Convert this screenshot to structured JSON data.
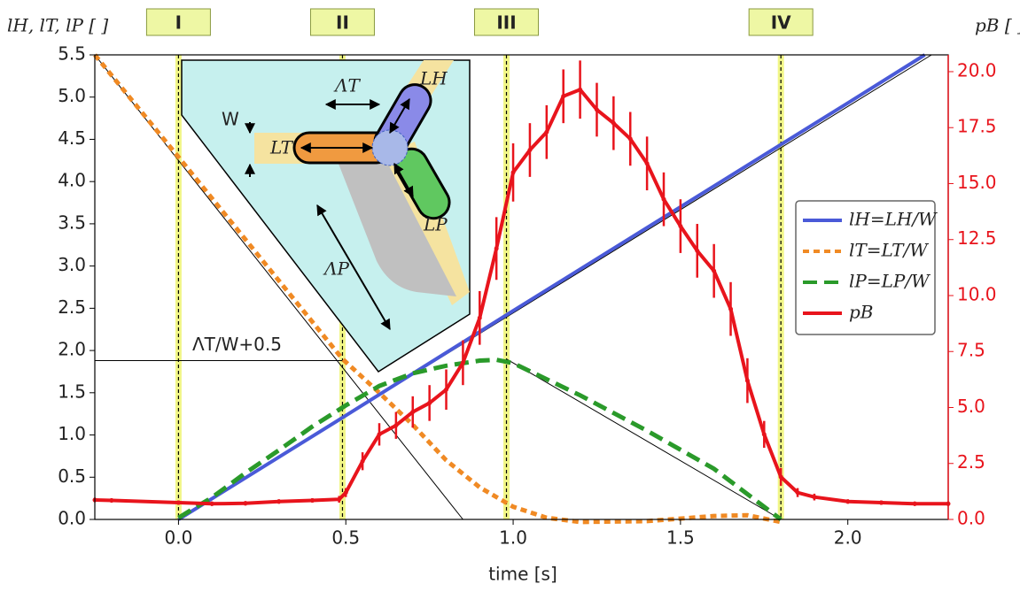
{
  "chart_data": {
    "type": "line",
    "x_label": "time [s]",
    "y_label": "lH, lT, lP [ ]",
    "y2_label": "pB [ ]",
    "xlim": [
      -0.25,
      2.3
    ],
    "ylim": [
      0,
      5.5
    ],
    "y2lim": [
      0,
      20.75
    ],
    "xticks": [
      {
        "value": 0,
        "label": "0.0"
      },
      0.5,
      {
        "value": 1,
        "label": "1.0"
      },
      1.5,
      {
        "value": 2,
        "label": "2.0"
      }
    ],
    "yticks": [
      {
        "value": 0,
        "label": "0.0"
      },
      0.5,
      {
        "value": 1,
        "label": "1.0"
      },
      1.5,
      {
        "value": 2,
        "label": "2.0"
      },
      2.5,
      {
        "value": 3,
        "label": "3.0"
      },
      3.5,
      {
        "value": 4,
        "label": "4.0"
      },
      4.5,
      {
        "value": 5,
        "label": "5.0"
      },
      5.5
    ],
    "y2ticks": [
      {
        "value": 0,
        "label": "0.0"
      },
      2.5,
      {
        "value": 5,
        "label": "5.0"
      },
      7.5,
      {
        "value": 10,
        "label": "10.0"
      },
      12.5,
      {
        "value": 15,
        "label": "15.0"
      },
      17.5,
      {
        "value": 20,
        "label": "20.0"
      }
    ],
    "series": [
      {
        "name": "lH=LH/W",
        "color": "#4a5ad8",
        "style": "solid",
        "x": [
          0,
          0.5,
          1.0,
          1.5,
          2.0,
          2.23
        ],
        "values": [
          0,
          1.23,
          2.47,
          3.7,
          4.93,
          5.5
        ]
      },
      {
        "name": "lT=LT/W",
        "color": "#f08a24",
        "style": "dotted",
        "x": [
          -0.25,
          0,
          0.25,
          0.49,
          0.6,
          0.7,
          0.8,
          0.9,
          1.0,
          1.1,
          1.2,
          1.4,
          1.6,
          1.7,
          1.8
        ],
        "values": [
          5.5,
          4.29,
          3.07,
          1.9,
          1.5,
          1.12,
          0.7,
          0.38,
          0.15,
          0.02,
          -0.03,
          -0.02,
          0.04,
          0.05,
          -0.03
        ]
      },
      {
        "name": "lP=LP/W",
        "color": "#2a9a2a",
        "style": "dashed",
        "x": [
          0,
          0.1,
          0.2,
          0.3,
          0.4,
          0.5,
          0.6,
          0.7,
          0.8,
          0.9,
          0.95,
          1.0,
          1.2,
          1.4,
          1.6,
          1.8
        ],
        "values": [
          0.02,
          0.26,
          0.55,
          0.82,
          1.1,
          1.35,
          1.58,
          1.73,
          1.82,
          1.88,
          1.89,
          1.85,
          1.47,
          1.05,
          0.6,
          0
        ]
      },
      {
        "name": "pB",
        "color": "#e8141c",
        "style": "solid",
        "axis": "y2",
        "x": [
          -0.25,
          -0.2,
          0,
          0.1,
          0.2,
          0.3,
          0.4,
          0.48,
          0.5,
          0.55,
          0.6,
          0.65,
          0.7,
          0.75,
          0.8,
          0.85,
          0.9,
          0.95,
          1.0,
          1.05,
          1.1,
          1.15,
          1.2,
          1.25,
          1.3,
          1.35,
          1.4,
          1.45,
          1.5,
          1.55,
          1.6,
          1.65,
          1.7,
          1.75,
          1.8,
          1.85,
          1.9,
          2.0,
          2.1,
          2.2,
          2.3
        ],
        "values": [
          0.87,
          0.85,
          0.75,
          0.7,
          0.72,
          0.8,
          0.85,
          0.9,
          1.2,
          2.6,
          3.8,
          4.2,
          4.8,
          5.2,
          5.8,
          7.0,
          9.0,
          12.1,
          15.5,
          16.5,
          17.3,
          18.9,
          19.2,
          18.3,
          17.7,
          17.0,
          15.9,
          14.3,
          13.1,
          12.0,
          11.1,
          9.4,
          6.2,
          3.8,
          1.9,
          1.2,
          1.0,
          0.8,
          0.75,
          0.7,
          0.7
        ],
        "errors": [
          0.1,
          0.1,
          0.1,
          0.1,
          0.1,
          0.1,
          0.1,
          0.15,
          0.2,
          0.4,
          0.5,
          0.6,
          0.7,
          0.8,
          0.9,
          1.0,
          1.2,
          1.4,
          1.3,
          1.2,
          1.2,
          1.2,
          1.3,
          1.2,
          1.2,
          1.2,
          1.2,
          1.2,
          1.2,
          1.2,
          1.2,
          1.2,
          1.0,
          0.6,
          0.4,
          0.2,
          0.15,
          0.1,
          0.1,
          0.1,
          0.1
        ]
      }
    ],
    "guides": [
      {
        "x": [
          0,
          2.25
        ],
        "y": [
          0,
          5.5
        ]
      },
      {
        "x": [
          -0.25,
          0.85
        ],
        "y": [
          5.5,
          0
        ]
      },
      {
        "x": [
          0.98,
          1.8
        ],
        "y": [
          1.9,
          0
        ]
      },
      {
        "x": [
          -0.25,
          0.49
        ],
        "y": [
          1.88,
          1.88
        ]
      }
    ],
    "annotation": "ΛT/W+0.5",
    "markers": [
      {
        "x": 0,
        "label": "I"
      },
      {
        "x": 0.49,
        "label": "II"
      },
      {
        "x": 0.98,
        "label": "III"
      },
      {
        "x": 1.8,
        "label": "IV"
      }
    ],
    "legend": "center right"
  },
  "inset": {
    "labels": [
      "ΛT",
      "LH",
      "W",
      "LT",
      "LP",
      "ΛP"
    ]
  }
}
